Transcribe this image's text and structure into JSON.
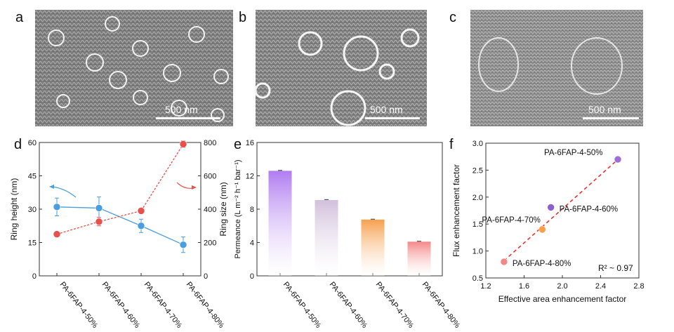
{
  "panels": {
    "a": {
      "letter": "a",
      "scale_label": "500 nm"
    },
    "b": {
      "letter": "b",
      "scale_label": "500 nm"
    },
    "c": {
      "letter": "c",
      "scale_label": "500 nm"
    },
    "d": {
      "letter": "d"
    },
    "e": {
      "letter": "e"
    },
    "f": {
      "letter": "f"
    }
  },
  "chart_data": [
    {
      "panel": "d",
      "type": "line",
      "categories": [
        "PA-6FAP-4-50%",
        "PA-6FAP-4-60%",
        "PA-6FAP-4-70%",
        "PA-6FAP-4-80%"
      ],
      "ylabel": "Ring height (nm)",
      "y2label": "Ring size (nm)",
      "ylim": [
        0,
        60
      ],
      "yticks": [
        0,
        15,
        30,
        45,
        60
      ],
      "y2lim": [
        0,
        800
      ],
      "y2ticks": [
        0,
        200,
        400,
        600,
        800
      ],
      "series": [
        {
          "axis": "left",
          "color": "#4a9ede",
          "values": [
            31,
            30.5,
            22.5,
            14
          ],
          "errors": [
            4,
            5,
            3,
            3.5
          ]
        },
        {
          "axis": "right",
          "color": "#e8504b",
          "values": [
            250,
            325,
            390,
            790
          ],
          "errors": [
            10,
            25,
            15,
            20
          ]
        }
      ]
    },
    {
      "panel": "e",
      "type": "bar",
      "categories": [
        "PA-6FAP-4-50%",
        "PA-6FAP-4-60%",
        "PA-6FAP-4-70%",
        "PA-6FAP-4-80%"
      ],
      "values": [
        12.6,
        9.1,
        6.75,
        4.1
      ],
      "errors": [
        0.05,
        0.05,
        0.05,
        0.05
      ],
      "colors": [
        "#b07cf0",
        "#d2bfdc",
        "#f6a04c",
        "#f38786"
      ],
      "ylabel": "Permeance (L m⁻² h⁻¹ bar⁻¹)",
      "ylim": [
        0,
        16
      ],
      "yticks": [
        0,
        4,
        8,
        12,
        16
      ]
    },
    {
      "panel": "f",
      "type": "scatter",
      "xlabel": "Effective area enhancement factor",
      "ylabel": "Flux enhancement factor",
      "xlim": [
        1.2,
        2.8
      ],
      "xticks": [
        1.2,
        1.6,
        2.0,
        2.4,
        2.8
      ],
      "ylim": [
        0.5,
        3.0
      ],
      "yticks": [
        0.5,
        1.0,
        1.5,
        2.0,
        2.5,
        3.0
      ],
      "points": [
        {
          "label": "PA-6FAP-4-50%",
          "x": 2.58,
          "y": 2.7,
          "color": "#9b6fd6"
        },
        {
          "label": "PA-6FAP-4-60%",
          "x": 1.88,
          "y": 1.81,
          "color": "#8e5fcf"
        },
        {
          "label": "PA-6FAP-4-70%",
          "x": 1.79,
          "y": 1.4,
          "color": "#f6a04c"
        },
        {
          "label": "PA-6FAP-4-80%",
          "x": 1.39,
          "y": 0.8,
          "color": "#f38786"
        }
      ],
      "fit_line": {
        "x": [
          1.39,
          2.62
        ],
        "y": [
          0.82,
          2.76
        ],
        "color": "#e8332e"
      },
      "annotation": "R² ~ 0.97"
    }
  ]
}
